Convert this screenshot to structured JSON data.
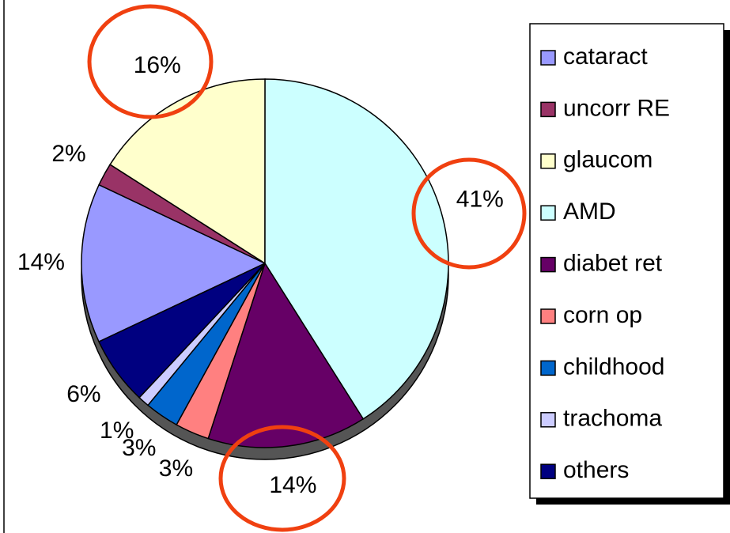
{
  "chart_data": {
    "type": "pie",
    "categories": [
      "cataract",
      "uncorr RE",
      "glaucom",
      "AMD",
      "diabet ret",
      "corn op",
      "childhood",
      "trachoma",
      "others"
    ],
    "values": [
      14,
      2,
      16,
      41,
      14,
      3,
      3,
      1,
      6
    ],
    "value_labels": [
      "14%",
      "2%",
      "16%",
      "41%",
      "14%",
      "3%",
      "3%",
      "1%",
      "6%"
    ],
    "colors": [
      "#9999ff",
      "#993366",
      "#ffffcc",
      "#ccffff",
      "#660066",
      "#ff8080",
      "#0066cc",
      "#ccccff",
      "#000080"
    ],
    "legend": "right"
  }
}
